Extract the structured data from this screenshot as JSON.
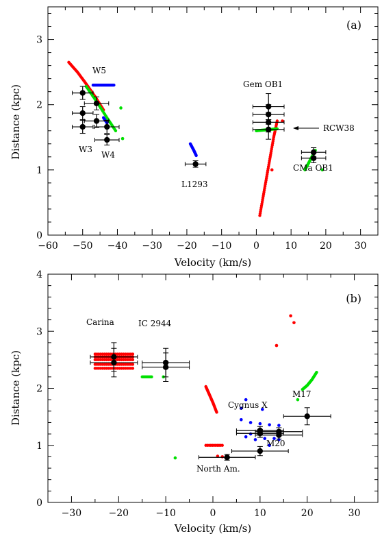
{
  "chart_data": [
    {
      "type": "scatter",
      "panel_label": "(a)",
      "xlabel": "Velocity (km/s)",
      "ylabel": "Distance (kpc)",
      "xlim": [
        -60,
        35
      ],
      "ylim": [
        0,
        3.5
      ],
      "xticks": [
        -60,
        -50,
        -40,
        -30,
        -20,
        -10,
        0,
        10,
        20,
        30
      ],
      "yticks": [
        0,
        1,
        2,
        3
      ],
      "annotations": [
        "W5",
        "W3",
        "W4",
        "L1293",
        "Gem OB1",
        "RCW38",
        "CMa OB1"
      ],
      "colors": {
        "red": "#ff0000",
        "green": "#00e000",
        "blue": "#0000ff",
        "black": "#000000"
      },
      "series": [
        {
          "color": "red",
          "segments": [
            {
              "x": [
                -54,
                -51.5,
                -49,
                -46.5,
                -44
              ],
              "y": [
                2.65,
                2.5,
                2.32,
                2.13,
                1.92
              ]
            },
            {
              "x": [
                1,
                2,
                3,
                4,
                5,
                6
              ],
              "y": [
                0.3,
                0.6,
                0.9,
                1.2,
                1.5,
                1.75
              ]
            }
          ],
          "points": [
            {
              "x": 7.5,
              "y": 1.75
            },
            {
              "x": 4.5,
              "y": 1.0
            }
          ]
        },
        {
          "color": "green",
          "segments": [
            {
              "x": [
                -49,
                -46,
                -43,
                -40.5
              ],
              "y": [
                2.28,
                2.05,
                1.8,
                1.6
              ]
            },
            {
              "x": [
                0,
                2,
                4,
                6
              ],
              "y": [
                1.6,
                1.61,
                1.62,
                1.63
              ]
            },
            {
              "x": [
                14,
                15,
                16,
                17
              ],
              "y": [
                1.0,
                1.1,
                1.2,
                1.3
              ]
            }
          ],
          "points": [
            {
              "x": -39,
              "y": 1.95
            },
            {
              "x": -38.5,
              "y": 1.48
            },
            {
              "x": 19,
              "y": 1.0
            }
          ]
        },
        {
          "color": "blue",
          "segments": [
            {
              "x": [
                -47,
                -44,
                -41
              ],
              "y": [
                2.3,
                2.3,
                2.3
              ]
            },
            {
              "x": [
                -19,
                -18,
                -17.3
              ],
              "y": [
                1.4,
                1.3,
                1.22
              ]
            },
            {
              "x": [
                -44,
                -43
              ],
              "y": [
                1.8,
                1.72
              ]
            }
          ],
          "points": []
        },
        {
          "color": "black",
          "errorbar_points": [
            {
              "x": -50,
              "y": 2.18,
              "xerr": 3,
              "yerr": 0.1
            },
            {
              "x": -46,
              "y": 2.02,
              "xerr": 3.5,
              "yerr": 0.1
            },
            {
              "x": -50,
              "y": 1.87,
              "xerr": 3,
              "yerr": 0.1
            },
            {
              "x": -46,
              "y": 1.75,
              "xerr": 3.5,
              "yerr": 0.1
            },
            {
              "x": -50,
              "y": 1.66,
              "xerr": 3,
              "yerr": 0.1
            },
            {
              "x": -43,
              "y": 1.66,
              "xerr": 3.5,
              "yerr": 0.1
            },
            {
              "x": -43,
              "y": 1.46,
              "xerr": 3.5,
              "yerr": 0.08
            },
            {
              "x": -17.5,
              "y": 1.09,
              "xerr": 3,
              "yerr": 0.05
            },
            {
              "x": 3.5,
              "y": 1.97,
              "xerr": 4.5,
              "yerr": 0.2
            },
            {
              "x": 3.5,
              "y": 1.85,
              "xerr": 4.5,
              "yerr": 0.15
            },
            {
              "x": 3.5,
              "y": 1.73,
              "xerr": 4.5,
              "yerr": 0.15
            },
            {
              "x": 3.5,
              "y": 1.62,
              "xerr": 4.5,
              "yerr": 0.15
            },
            {
              "x": 16.5,
              "y": 1.27,
              "xerr": 3.5,
              "yerr": 0.07
            },
            {
              "x": 16.5,
              "y": 1.18,
              "xerr": 3.5,
              "yerr": 0.07
            }
          ]
        }
      ]
    },
    {
      "type": "scatter",
      "panel_label": "(b)",
      "xlabel": "Velocity (km/s)",
      "ylabel": "Distance (kpc)",
      "xlim": [
        -35,
        35
      ],
      "ylim": [
        0,
        4
      ],
      "xticks": [
        -30,
        -20,
        -10,
        0,
        10,
        20,
        30
      ],
      "yticks": [
        0,
        1,
        2,
        3,
        4
      ],
      "annotations": [
        "Carina",
        "IC 2944",
        "Cygnus X",
        "M17",
        "M20",
        "North Am."
      ],
      "colors": {
        "red": "#ff0000",
        "green": "#00e000",
        "blue": "#0000ff",
        "black": "#000000"
      },
      "series": [
        {
          "color": "red",
          "segments": [
            {
              "x": [
                -25,
                -21,
                -17
              ],
              "y": [
                2.6,
                2.6,
                2.6
              ]
            },
            {
              "x": [
                -25,
                -21,
                -17
              ],
              "y": [
                2.55,
                2.55,
                2.55
              ]
            },
            {
              "x": [
                -25,
                -21,
                -17
              ],
              "y": [
                2.5,
                2.5,
                2.5
              ]
            },
            {
              "x": [
                -25,
                -21,
                -17
              ],
              "y": [
                2.42,
                2.42,
                2.42
              ]
            },
            {
              "x": [
                -25,
                -21,
                -17
              ],
              "y": [
                2.35,
                2.35,
                2.35
              ]
            },
            {
              "x": [
                -1.5,
                -0.8,
                0,
                0.8
              ],
              "y": [
                2.03,
                1.9,
                1.75,
                1.58
              ]
            },
            {
              "x": [
                -1.5,
                2
              ],
              "y": [
                1.0,
                1.0
              ]
            }
          ],
          "points": [
            {
              "x": 16.5,
              "y": 3.27
            },
            {
              "x": 17.2,
              "y": 3.15
            },
            {
              "x": 13.5,
              "y": 2.75
            },
            {
              "x": 1,
              "y": 0.81
            },
            {
              "x": 2,
              "y": 0.8
            }
          ]
        },
        {
          "color": "green",
          "segments": [
            {
              "x": [
                -15,
                -13
              ],
              "y": [
                2.2,
                2.2
              ]
            },
            {
              "x": [
                19,
                20,
                21,
                22
              ],
              "y": [
                1.98,
                2.05,
                2.15,
                2.28
              ]
            }
          ],
          "points": [
            {
              "x": -10.5,
              "y": 2.2
            },
            {
              "x": -8,
              "y": 0.78
            },
            {
              "x": 18,
              "y": 1.8
            }
          ]
        },
        {
          "color": "blue",
          "points": [
            {
              "x": 6,
              "y": 1.65
            },
            {
              "x": 7,
              "y": 1.8
            },
            {
              "x": 10.5,
              "y": 1.63
            },
            {
              "x": 6,
              "y": 1.45
            },
            {
              "x": 8,
              "y": 1.4
            },
            {
              "x": 10,
              "y": 1.38
            },
            {
              "x": 12,
              "y": 1.36
            },
            {
              "x": 14,
              "y": 1.35
            },
            {
              "x": 7,
              "y": 1.15
            },
            {
              "x": 9,
              "y": 1.1
            },
            {
              "x": 11,
              "y": 1.12
            },
            {
              "x": 13,
              "y": 1.12
            },
            {
              "x": 14,
              "y": 1.1
            },
            {
              "x": 8,
              "y": 1.2
            },
            {
              "x": 12,
              "y": 1.0
            }
          ],
          "segments": []
        },
        {
          "color": "black",
          "errorbar_points": [
            {
              "x": -21,
              "y": 2.55,
              "xerr": 5,
              "yerr": 0.25
            },
            {
              "x": -21,
              "y": 2.45,
              "xerr": 5,
              "yerr": 0.25
            },
            {
              "x": -10,
              "y": 2.45,
              "xerr": 5,
              "yerr": 0.25
            },
            {
              "x": -10,
              "y": 2.37,
              "xerr": 5,
              "yerr": 0.25
            },
            {
              "x": 10,
              "y": 1.26,
              "xerr": 5,
              "yerr": 0.07
            },
            {
              "x": 14,
              "y": 1.24,
              "xerr": 5,
              "yerr": 0.07
            },
            {
              "x": 10,
              "y": 1.21,
              "xerr": 5,
              "yerr": 0.07
            },
            {
              "x": 14,
              "y": 1.18,
              "xerr": 5,
              "yerr": 0.07
            },
            {
              "x": 20,
              "y": 1.51,
              "xerr": 5,
              "yerr": 0.15
            },
            {
              "x": 10,
              "y": 0.9,
              "xerr": 6,
              "yerr": 0.08
            },
            {
              "x": 3,
              "y": 0.79,
              "xerr": 6,
              "yerr": 0.05
            }
          ]
        }
      ]
    }
  ]
}
